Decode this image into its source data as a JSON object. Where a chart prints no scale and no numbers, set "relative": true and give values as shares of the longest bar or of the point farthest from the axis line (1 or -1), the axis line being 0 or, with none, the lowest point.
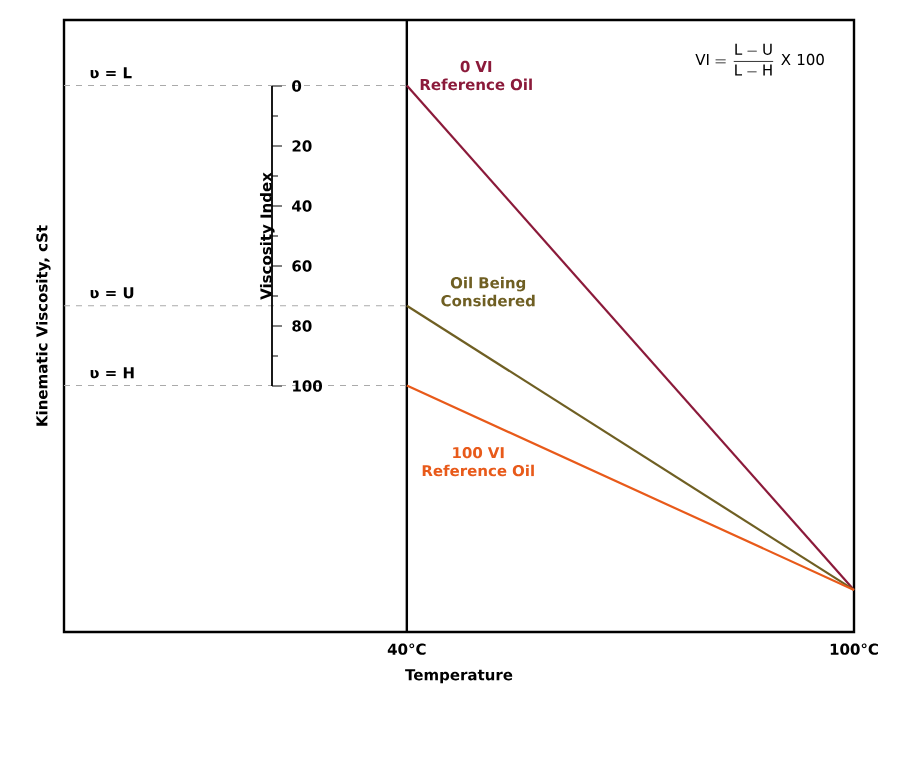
{
  "chart_data": {
    "type": "line",
    "xlabel": "Temperature",
    "ylabel": "Kinematic Viscosity, cSt",
    "y2label": "Viscosity Index",
    "x": [
      40,
      100
    ],
    "series": [
      {
        "name": "0 VI Reference Oil",
        "color": "#8b1a3a",
        "values": [
          1,
          0.077
        ]
      },
      {
        "name": "Oil Being Considered",
        "color": "#6f5f23",
        "values": [
          0.597,
          0.077
        ]
      },
      {
        "name": "100 VI Reference Oil",
        "color": "#e85a1a",
        "values": [
          0.451,
          0.077
        ]
      }
    ],
    "xlim": [
      -6,
      100
    ],
    "xticks": [
      {
        "value": 40,
        "label": "40°C"
      },
      {
        "value": 100,
        "label": "100°C"
      }
    ],
    "relative": true,
    "y2lim": [
      100,
      0
    ],
    "y2ticks": [
      0,
      20,
      40,
      60,
      80,
      100
    ],
    "ref_lines": [
      {
        "axis": "x",
        "value": 40,
        "color": "#000000",
        "line_style": "solid"
      },
      {
        "axis": "y",
        "value": 1,
        "label": "ʋ = L",
        "color": "#aaaaaa",
        "line_style": "dashed"
      },
      {
        "axis": "y",
        "value": 0.597,
        "label": "ʋ = U",
        "color": "#aaaaaa",
        "line_style": "dashed"
      },
      {
        "axis": "y",
        "value": 0.451,
        "label": "ʋ = H",
        "color": "#aaaaaa",
        "line_style": "dashed"
      }
    ],
    "annotations": [
      "\\mathrm{VI} = \\frac{\\mathrm{L - U}}{\\mathrm{L - H}}\\ \\mathrm{X\\ 100}"
    ],
    "marker": "none",
    "line_style": "solid"
  }
}
